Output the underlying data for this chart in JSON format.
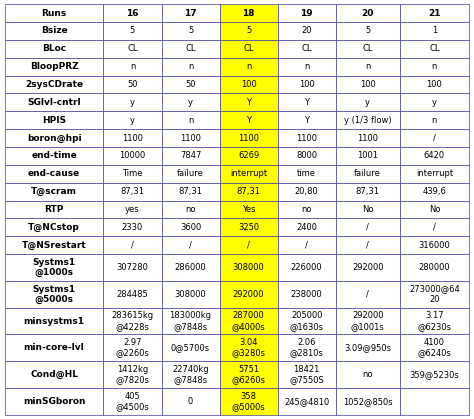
{
  "headers": [
    "Runs",
    "16",
    "17",
    "18",
    "19",
    "20",
    "21"
  ],
  "rows": [
    [
      "Bsize",
      "5",
      "5",
      "5",
      "20",
      "5",
      "1"
    ],
    [
      "BLoc",
      "CL",
      "CL",
      "CL",
      "CL",
      "CL",
      "CL"
    ],
    [
      "BloopPRZ",
      "n",
      "n",
      "n",
      "n",
      "n",
      "n"
    ],
    [
      "2sysCDrate",
      "50",
      "50",
      "100",
      "100",
      "100",
      "100"
    ],
    [
      "SGlvl-cntrl",
      "y",
      "y",
      "Y",
      "Y",
      "y",
      "y"
    ],
    [
      "HPIS",
      "y",
      "n",
      "Y",
      "Y",
      "y (1/3 flow)",
      "n"
    ],
    [
      "boron@hpi",
      "1100",
      "1100",
      "1100",
      "1100",
      "1100",
      "/"
    ],
    [
      "end-time",
      "10000",
      "7847",
      "6269",
      "8000",
      "1001",
      "6420"
    ],
    [
      "end-cause",
      "Time",
      "failure",
      "interrupt",
      "time",
      "failure",
      "interrupt"
    ],
    [
      "T@scram",
      "87,31",
      "87,31",
      "87,31",
      "20,80",
      "87,31",
      "439,6"
    ],
    [
      "RTP",
      "yes",
      "no",
      "Yes",
      "no",
      "No",
      "No"
    ],
    [
      "T@NCstop",
      "2330",
      "3600",
      "3250",
      "2400",
      "/",
      "/"
    ],
    [
      "T@NSrestart",
      "/",
      "/",
      "/",
      "/",
      "/",
      "316000"
    ],
    [
      "Systms1\n@1000s",
      "307280",
      "286000",
      "308000",
      "226000",
      "292000",
      "280000"
    ],
    [
      "Systms1\n@5000s",
      "284485",
      "308000",
      "292000",
      "238000",
      "/",
      "273000@64\n20"
    ],
    [
      "minsystms1",
      "283615kg\n@4228s",
      "183000kg\n@7848s",
      "287000\n@4000s",
      "205000\n@1630s",
      "292000\n@1001s",
      "3.17\n@6230s"
    ],
    [
      "min-core-lvl",
      "2.97\n@2260s",
      "0@5700s",
      "3.04\n@3280s",
      "2.06\n@2810s",
      "3.09@950s",
      "4100\n@6240s"
    ],
    [
      "Cond@HL",
      "1412kg\n@7820s",
      "22740kg\n@7848s",
      "5751\n@6260s",
      "18421\n@7550S",
      "no",
      "359@5230s"
    ],
    [
      "minSGboron",
      "405\n@4500s",
      "0",
      "358\n@5000s",
      "245@4810",
      "1052@850s",
      ""
    ]
  ],
  "highlight_col": 3,
  "highlight_bg": "#ffff00",
  "normal_bg": "#ffffff",
  "border_color": "#4040a0",
  "text_color": "#000000",
  "col_widths": [
    1.7,
    1.0,
    1.0,
    1.0,
    1.0,
    1.1,
    1.2
  ],
  "row_heights": [
    1.0,
    1.0,
    1.0,
    1.0,
    1.0,
    1.0,
    1.0,
    1.0,
    1.0,
    1.0,
    1.0,
    1.0,
    1.0,
    1.0,
    1.5,
    1.5,
    1.5,
    1.5,
    1.5,
    1.5
  ],
  "header_fontsize": 6.5,
  "col0_fontsize": 6.5,
  "cell_fontsize": 6.0
}
